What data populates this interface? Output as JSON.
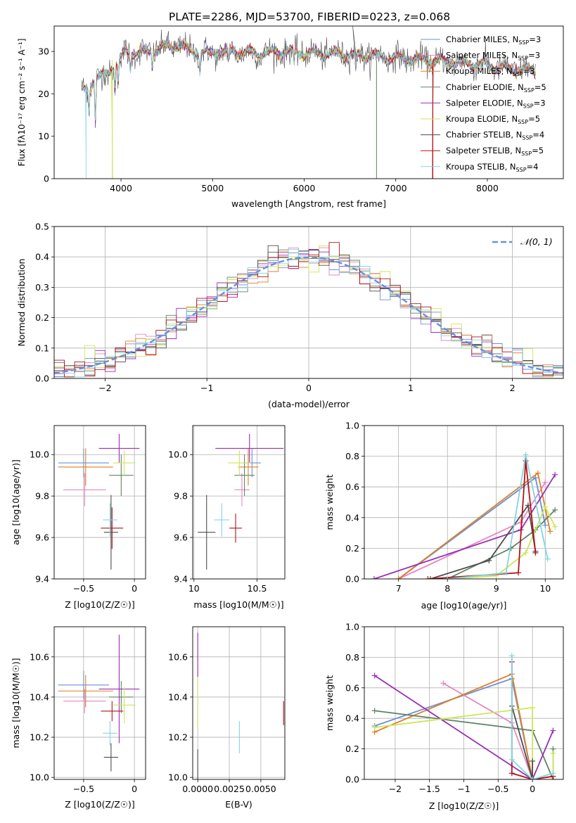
{
  "title": "PLATE=2286, MJD=53700, FIBERID=0223, z=0.068",
  "colors": [
    "#6a8fdc",
    "#e388c0",
    "#e07f25",
    "#5e8465",
    "#9a2fb5",
    "#cde65a",
    "#4d4d4d",
    "#b3121a",
    "#82d6e0"
  ],
  "chart_data": [
    {
      "id": "spectrum",
      "type": "line",
      "title": "PLATE=2286, MJD=53700, FIBERID=0223, z=0.068",
      "xlabel": "wavelength [Angstrom, rest frame]",
      "ylabel": "Flux [fλ10⁻¹⁷ erg cm⁻² s⁻¹ A⁻¹]",
      "xlim": [
        3270,
        8830
      ],
      "ylim": [
        0,
        36
      ],
      "xticks": [
        4000,
        5000,
        6000,
        7000,
        8000
      ],
      "yticks": [
        0,
        10,
        20,
        30
      ],
      "grid": false,
      "legend": "upper right",
      "series_names": [
        "Chabrier MILES, N_SSP=3",
        "Salpeter MILES, N_SSP=3",
        "Kroupa MILES, N_SSP=3",
        "Chabrier ELODIE, N_SSP=5",
        "Salpeter ELODIE, N_SSP=3",
        "Kroupa ELODIE, N_SSP=5",
        "Chabrier STELIB, N_SSP=4",
        "Salpeter STELIB, N_SSP=5",
        "Kroupa STELIB, N_SSP=4"
      ],
      "legend_labels": [
        {
          "pre": "Chabrier MILES, N",
          "sub": "SSP",
          "post": "=3"
        },
        {
          "pre": "Salpeter MILES, N",
          "sub": "SSP",
          "post": "=3"
        },
        {
          "pre": "Kroupa MILES, N",
          "sub": "SSP",
          "post": "=3"
        },
        {
          "pre": "Chabrier ELODIE, N",
          "sub": "SSP",
          "post": "=5"
        },
        {
          "pre": "Salpeter ELODIE, N",
          "sub": "SSP",
          "post": "=3"
        },
        {
          "pre": "Kroupa ELODIE, N",
          "sub": "SSP",
          "post": "=5"
        },
        {
          "pre": "Chabrier STELIB, N",
          "sub": "SSP",
          "post": "=4"
        },
        {
          "pre": "Salpeter STELIB, N",
          "sub": "SSP",
          "post": "=5"
        },
        {
          "pre": "Kroupa STELIB, N",
          "sub": "SSP",
          "post": "=4"
        }
      ],
      "continuum": {
        "x": [
          3570,
          3650,
          3750,
          3850,
          3950,
          4050,
          4200,
          4400,
          4600,
          4800,
          5000,
          5200,
          5500,
          5800,
          6100,
          6400,
          6700,
          7000,
          7300,
          7600,
          7900,
          8200,
          8500
        ],
        "y": [
          21,
          22,
          23.5,
          25,
          27,
          30,
          29.5,
          30.5,
          31.5,
          30,
          29.5,
          30,
          29.5,
          30,
          29.5,
          29.5,
          29,
          28.5,
          28,
          27.5,
          27,
          26,
          25.5
        ]
      }
    },
    {
      "id": "residuals",
      "type": "line",
      "xlabel": "(data-model)/error",
      "ylabel": "Normed distribution",
      "xlim": [
        -2.5,
        2.5
      ],
      "ylim": [
        0,
        0.5
      ],
      "xticks": [
        -2,
        -1,
        0,
        1,
        2
      ],
      "yticks": [
        0.0,
        0.1,
        0.2,
        0.3,
        0.4,
        0.5
      ],
      "grid": true,
      "legend": "upper right",
      "reference": {
        "name": "𝒩(0, 1)",
        "type": "gaussian",
        "mean": 0,
        "sigma": 1
      },
      "bin_width": 0.1
    },
    {
      "id": "age_vs_Z",
      "type": "scatter",
      "xlabel": "Z [log10(Z/Z☉)]",
      "ylabel": "age [log10(age/yr)]",
      "xlim": [
        -0.79,
        0.11
      ],
      "ylim": [
        9.4,
        10.14
      ],
      "xticks": [
        -0.5,
        0.0
      ],
      "yticks": [
        9.4,
        9.6,
        9.8,
        10.0
      ],
      "grid": true,
      "points": [
        {
          "x": -0.5,
          "y": 9.96,
          "xerr": 0.25,
          "yerr": 0.07
        },
        {
          "x": -0.49,
          "y": 9.83,
          "xerr": 0.21,
          "yerr": 0.08
        },
        {
          "x": -0.48,
          "y": 9.94,
          "xerr": 0.27,
          "yerr": 0.09
        },
        {
          "x": -0.13,
          "y": 9.9,
          "xerr": 0.12,
          "yerr": 0.1
        },
        {
          "x": -0.15,
          "y": 10.03,
          "xerr": 0.2,
          "yerr": 0.07
        },
        {
          "x": -0.1,
          "y": 9.96,
          "xerr": 0.11,
          "yerr": 0.06
        },
        {
          "x": -0.23,
          "y": 9.625,
          "xerr": 0.07,
          "yerr": 0.18
        },
        {
          "x": -0.22,
          "y": 9.645,
          "xerr": 0.11,
          "yerr": 0.1
        },
        {
          "x": -0.24,
          "y": 9.685,
          "xerr": 0.07,
          "yerr": 0.08
        }
      ]
    },
    {
      "id": "age_vs_mass",
      "type": "scatter",
      "xlabel": "mass [log10(M/M☉)]",
      "ylabel": "",
      "xlim": [
        9.99,
        10.72
      ],
      "ylim": [
        9.4,
        10.14
      ],
      "xticks": [
        10.0,
        10.5
      ],
      "yticks": [
        9.4,
        9.6,
        9.8,
        10.0
      ],
      "grid": true,
      "points": [
        {
          "x": 10.46,
          "y": 9.96,
          "xerr": 0.07,
          "yerr": 0.07
        },
        {
          "x": 10.38,
          "y": 9.83,
          "xerr": 0.06,
          "yerr": 0.08
        },
        {
          "x": 10.43,
          "y": 9.94,
          "xerr": 0.08,
          "yerr": 0.09
        },
        {
          "x": 10.4,
          "y": 9.9,
          "xerr": 0.08,
          "yerr": 0.1
        },
        {
          "x": 10.44,
          "y": 10.03,
          "xerr": 0.27,
          "yerr": 0.07
        },
        {
          "x": 10.36,
          "y": 9.96,
          "xerr": 0.09,
          "yerr": 0.06
        },
        {
          "x": 10.1,
          "y": 9.625,
          "xerr": 0.07,
          "yerr": 0.18
        },
        {
          "x": 10.33,
          "y": 9.645,
          "xerr": 0.05,
          "yerr": 0.07
        },
        {
          "x": 10.22,
          "y": 9.685,
          "xerr": 0.06,
          "yerr": 0.08
        }
      ]
    },
    {
      "id": "weight_vs_age",
      "type": "line",
      "xlabel": "age [log10(age/yr)]",
      "ylabel": "mass weight",
      "xlim": [
        6.3,
        10.37
      ],
      "ylim": [
        0,
        1
      ],
      "xticks": [
        7,
        8,
        9,
        10
      ],
      "yticks": [
        0.0,
        0.2,
        0.4,
        0.6,
        0.8,
        1.0
      ],
      "grid": true,
      "series": [
        {
          "x": [
            7.0,
            9.8,
            10.0
          ],
          "y": [
            0.0,
            0.66,
            0.35
          ]
        },
        {
          "x": [
            7.0,
            9.5,
            10.0
          ],
          "y": [
            0.0,
            0.37,
            0.63
          ]
        },
        {
          "x": [
            7.0,
            9.85,
            10.1
          ],
          "y": [
            0.0,
            0.69,
            0.31
          ]
        },
        {
          "x": [
            8.0,
            9.3,
            9.8,
            10.2
          ],
          "y": [
            0.0,
            0.2,
            0.32,
            0.45
          ]
        },
        {
          "x": [
            6.5,
            9.5,
            10.2
          ],
          "y": [
            0.0,
            0.32,
            0.68
          ]
        },
        {
          "x": [
            8.0,
            9.0,
            9.6,
            10.0,
            10.2
          ],
          "y": [
            0.0,
            0.02,
            0.17,
            0.47,
            0.34
          ]
        },
        {
          "x": [
            7.65,
            8.85,
            9.65,
            9.8
          ],
          "y": [
            0.0,
            0.12,
            0.48,
            0.18
          ]
        },
        {
          "x": [
            7.6,
            9.45,
            9.6,
            9.8
          ],
          "y": [
            0.0,
            0.04,
            0.77,
            0.17
          ]
        },
        {
          "x": [
            8.0,
            9.2,
            9.6,
            10.05
          ],
          "y": [
            0.0,
            0.04,
            0.81,
            0.13
          ]
        }
      ]
    },
    {
      "id": "mass_vs_Z",
      "type": "scatter",
      "xlabel": "Z [log10(Z/Z☉)]",
      "ylabel": "mass [log10(M/M☉)]",
      "xlim": [
        -0.79,
        0.11
      ],
      "ylim": [
        9.99,
        10.75
      ],
      "xticks": [
        -0.5,
        0.0
      ],
      "yticks": [
        10.0,
        10.2,
        10.4,
        10.6
      ],
      "grid": true,
      "points": [
        {
          "x": -0.5,
          "y": 10.46,
          "xerr": 0.25,
          "yerr": 0.07
        },
        {
          "x": -0.49,
          "y": 10.38,
          "xerr": 0.21,
          "yerr": 0.06
        },
        {
          "x": -0.48,
          "y": 10.43,
          "xerr": 0.27,
          "yerr": 0.08
        },
        {
          "x": -0.13,
          "y": 10.4,
          "xerr": 0.12,
          "yerr": 0.08
        },
        {
          "x": -0.15,
          "y": 10.44,
          "xerr": 0.2,
          "yerr": 0.27
        },
        {
          "x": -0.1,
          "y": 10.36,
          "xerr": 0.11,
          "yerr": 0.09
        },
        {
          "x": -0.23,
          "y": 10.1,
          "xerr": 0.07,
          "yerr": 0.07
        },
        {
          "x": -0.22,
          "y": 10.33,
          "xerr": 0.11,
          "yerr": 0.05
        },
        {
          "x": -0.24,
          "y": 10.22,
          "xerr": 0.07,
          "yerr": 0.06
        }
      ]
    },
    {
      "id": "mass_vs_ebv",
      "type": "scatter",
      "xlabel": "E(B-V)",
      "ylabel": "",
      "xlim": [
        -0.0004,
        0.0069
      ],
      "ylim": [
        9.99,
        10.75
      ],
      "xticks": [
        0.0,
        0.0025,
        0.005
      ],
      "xticklabels": [
        "0.0000",
        "0.0025",
        "0.0050"
      ],
      "yticks": [
        10.0,
        10.2,
        10.4,
        10.6
      ],
      "grid": true,
      "points": [
        {
          "x": 0.0,
          "y": 10.61,
          "yerr": 0.11
        },
        {
          "x": 0.0,
          "y": 10.37,
          "yerr": 0.13
        },
        {
          "x": 0.0,
          "y": 10.06,
          "yerr": 0.08
        },
        {
          "x": 0.0033,
          "y": 10.2,
          "yerr": 0.08
        },
        {
          "x": 0.0068,
          "y": 10.32,
          "yerr": 0.06
        }
      ],
      "point_colors": [
        4,
        5,
        6,
        8,
        7
      ]
    },
    {
      "id": "weight_vs_Z",
      "type": "line",
      "xlabel": "Z [log10(Z/Z☉)]",
      "ylabel": "mass weight",
      "xlim": [
        -2.45,
        0.45
      ],
      "ylim": [
        0,
        1
      ],
      "xticks": [
        -2.0,
        -1.5,
        -1.0,
        -0.5,
        0.0
      ],
      "yticks": [
        0.0,
        0.2,
        0.4,
        0.6,
        0.8,
        1.0
      ],
      "grid": true,
      "series": [
        {
          "x": [
            -2.3,
            -0.3,
            0.0
          ],
          "y": [
            0.35,
            0.66,
            0.0
          ]
        },
        {
          "x": [
            -1.3,
            -0.3,
            0.0
          ],
          "y": [
            0.63,
            0.37,
            0.0
          ]
        },
        {
          "x": [
            -2.3,
            -0.3,
            0.0
          ],
          "y": [
            0.31,
            0.69,
            0.0
          ]
        },
        {
          "x": [
            -2.3,
            0.0,
            0.3,
            0.3
          ],
          "y": [
            0.45,
            0.32,
            0.0,
            0.2
          ]
        },
        {
          "x": [
            -2.3,
            0.0,
            0.3
          ],
          "y": [
            0.68,
            0.0,
            0.32
          ]
        },
        {
          "x": [
            -2.3,
            0.0,
            0.0,
            0.3,
            0.3
          ],
          "y": [
            0.34,
            0.47,
            0.0,
            0.02,
            0.17
          ]
        },
        {
          "x": [
            -0.3,
            0.0,
            0.0
          ],
          "y": [
            0.48,
            0.0,
            0.12
          ]
        },
        {
          "x": [
            -0.3,
            -0.3,
            0.0,
            0.3
          ],
          "y": [
            0.77,
            0.04,
            0.0,
            0.02
          ]
        },
        {
          "x": [
            -0.3,
            -0.3,
            0.0,
            0.3
          ],
          "y": [
            0.81,
            0.13,
            0.0,
            0.04
          ]
        }
      ]
    }
  ]
}
